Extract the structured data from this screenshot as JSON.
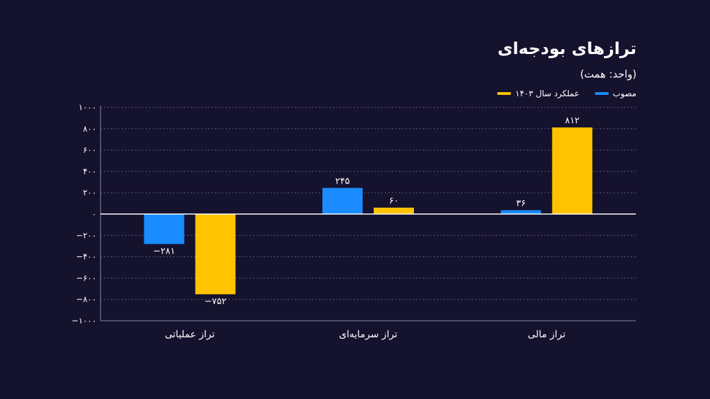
{
  "chart_data": {
    "type": "bar",
    "title": "ترازهای بودجه‌ای",
    "subtitle": "(واحد: همت)",
    "categories": [
      "تراز عملیاتی",
      "تراز سرمایه‌ای",
      "تراز مالی"
    ],
    "series": [
      {
        "name": "مصوب",
        "color": "#1a8cff",
        "values": [
          -281,
          245,
          36
        ],
        "labels": [
          "−۲۸۱",
          "۲۴۵",
          "۳۶"
        ]
      },
      {
        "name": "عملکرد سال ۱۴۰۳",
        "color": "#ffc300",
        "values": [
          -752,
          60,
          812
        ],
        "labels": [
          "−۷۵۲",
          "۶۰",
          "۸۱۲"
        ]
      }
    ],
    "ylim": [
      -1000,
      1000
    ],
    "yticks": [
      1000,
      800,
      600,
      400,
      200,
      0,
      -200,
      -400,
      -600,
      -800,
      -1000
    ],
    "ytick_labels": [
      "۱۰۰۰",
      "۸۰۰",
      "۶۰۰",
      "۴۰۰",
      "۲۰۰",
      "۰",
      "−۲۰۰",
      "−۴۰۰",
      "−۶۰۰",
      "−۸۰۰",
      "−۱۰۰۰"
    ],
    "legend_position": "top-right",
    "grid": true
  }
}
